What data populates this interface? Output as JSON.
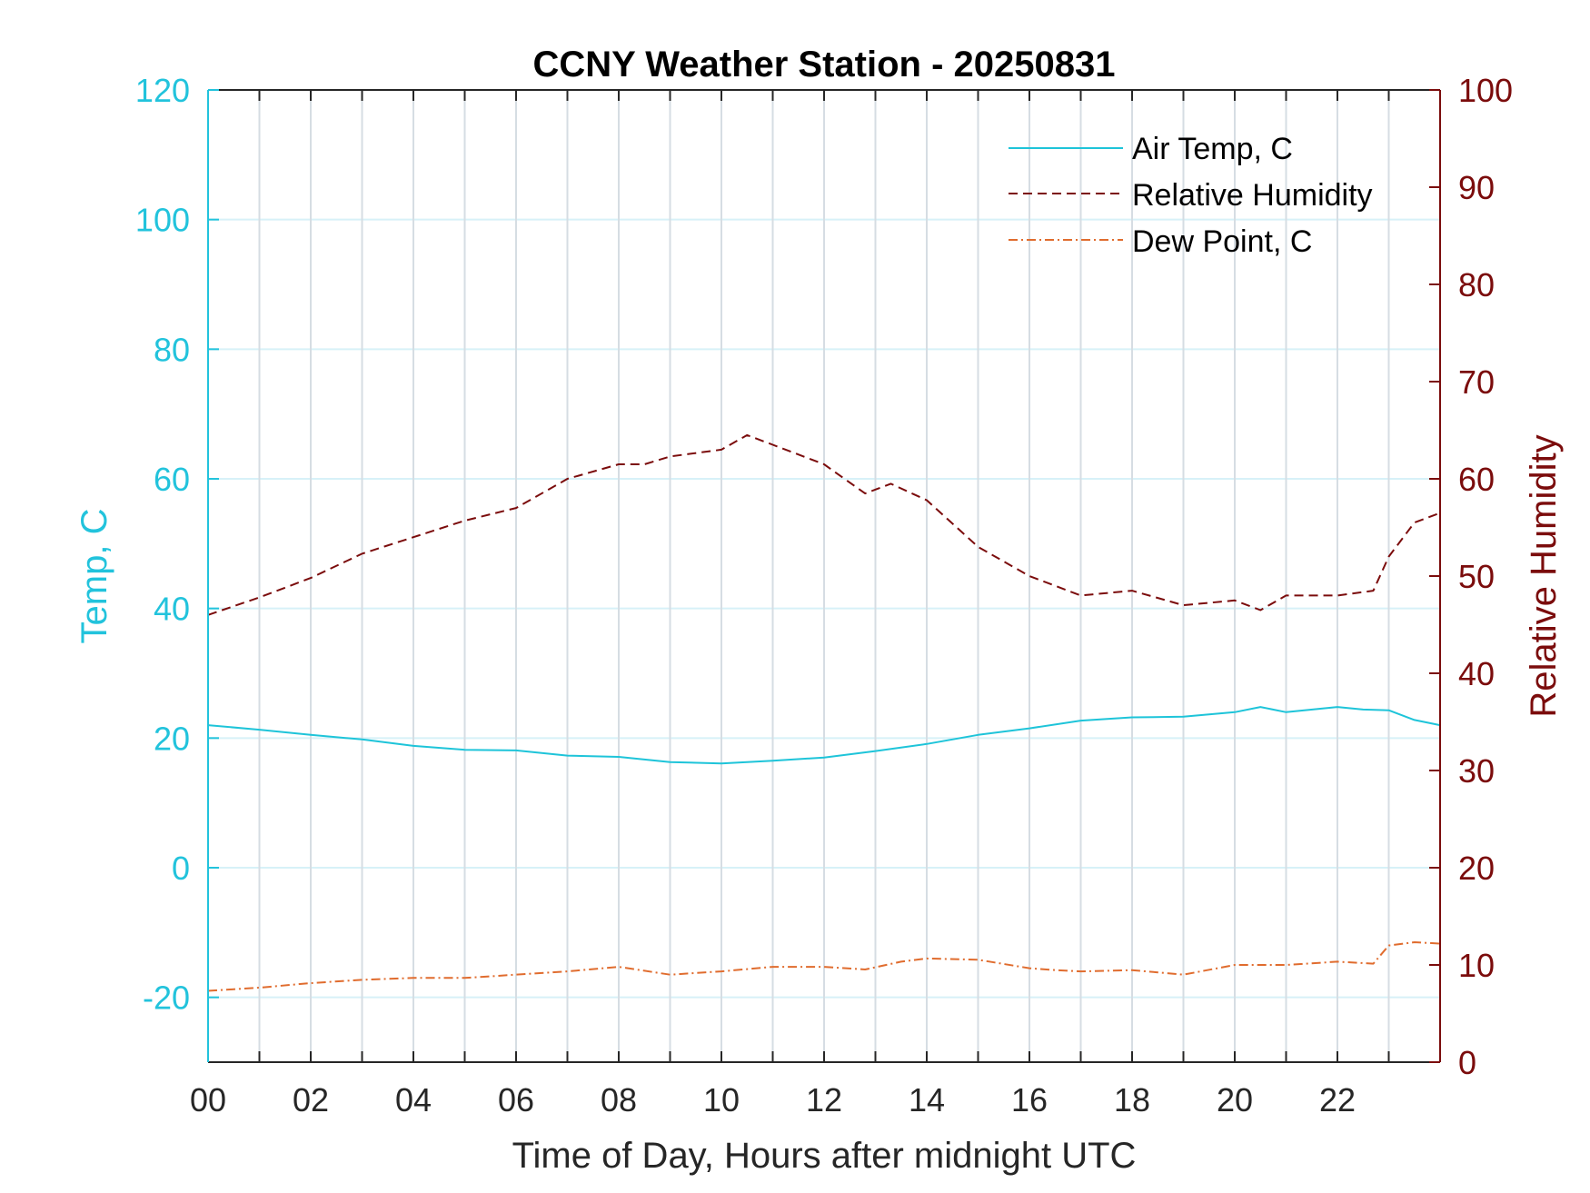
{
  "chart_data": {
    "type": "line",
    "title": "CCNY Weather Station - 20250831",
    "xlabel": "Time of Day, Hours after midnight UTC",
    "ylabel_left": "Temp, C",
    "ylabel_right": "Relative Humidity",
    "xlim": [
      0,
      24
    ],
    "ylim_left": [
      -30,
      120
    ],
    "ylim_right": [
      0,
      100
    ],
    "x_tick_labels": [
      "00",
      "02",
      "04",
      "06",
      "08",
      "10",
      "12",
      "14",
      "16",
      "18",
      "20",
      "22"
    ],
    "x_tick_values": [
      0,
      2,
      4,
      6,
      8,
      10,
      12,
      14,
      16,
      18,
      20,
      22
    ],
    "y_left_ticks": [
      -20,
      0,
      20,
      40,
      60,
      80,
      100,
      120
    ],
    "y_right_ticks": [
      0,
      10,
      20,
      30,
      40,
      50,
      60,
      70,
      80,
      90,
      100
    ],
    "grid": "on",
    "legend_position": "top-right",
    "colors": {
      "left_axis": "#22c3dc",
      "right_axis": "#7b0c0c",
      "temp": "#1ec4d9",
      "rh": "#7b0c0c",
      "dew": "#e06c2e",
      "vgrid": "#d6dde3",
      "hgrid": "#d7f1f8"
    },
    "series": [
      {
        "name": "Air Temp, C",
        "axis": "left",
        "style": "solid",
        "x": [
          0,
          1,
          2,
          3,
          4,
          5,
          6,
          7,
          8,
          9,
          10,
          11,
          12,
          13,
          14,
          15,
          16,
          17,
          18,
          19,
          20,
          20.5,
          21,
          22,
          22.5,
          23,
          23.5,
          24
        ],
        "values": [
          22.0,
          21.3,
          20.5,
          19.8,
          18.8,
          18.2,
          18.1,
          17.3,
          17.1,
          16.3,
          16.1,
          16.5,
          17.0,
          18.0,
          19.1,
          20.5,
          21.5,
          22.7,
          23.2,
          23.3,
          24.0,
          24.8,
          24.0,
          24.8,
          24.4,
          24.3,
          22.8,
          22.0
        ]
      },
      {
        "name": "Relative Humidity",
        "axis": "right",
        "style": "dashed",
        "x": [
          0,
          1,
          2,
          3,
          4,
          5,
          6,
          7,
          8,
          8.5,
          9,
          10,
          10.5,
          11,
          12,
          12.8,
          13.3,
          14,
          15,
          16,
          17,
          18,
          19,
          20,
          20.5,
          21,
          22,
          22.7,
          23,
          23.5,
          24
        ],
        "values": [
          46.0,
          47.8,
          49.8,
          52.3,
          54.0,
          55.7,
          57.0,
          60.0,
          61.5,
          61.5,
          62.3,
          63.0,
          64.5,
          63.5,
          61.5,
          58.5,
          59.5,
          57.8,
          53.0,
          50.0,
          48.0,
          48.5,
          47.0,
          47.5,
          46.5,
          48.0,
          48.0,
          48.5,
          52.0,
          55.5,
          56.5
        ]
      },
      {
        "name": "Dew Point, C",
        "axis": "left",
        "style": "dashdot",
        "x": [
          0,
          1,
          2,
          3,
          4,
          5,
          6,
          7,
          8,
          9,
          10,
          11,
          12,
          12.8,
          13.5,
          14,
          15,
          16,
          16.5,
          17,
          18,
          19,
          20,
          21,
          22,
          22.7,
          23,
          23.5,
          24
        ],
        "values": [
          -19.0,
          -18.5,
          -17.8,
          -17.3,
          -17.0,
          -17.0,
          -16.5,
          -16.0,
          -15.3,
          -16.5,
          -16.0,
          -15.3,
          -15.3,
          -15.7,
          -14.5,
          -14.0,
          -14.2,
          -15.5,
          -15.8,
          -16.0,
          -15.8,
          -16.5,
          -15.0,
          -15.0,
          -14.5,
          -14.8,
          -12.0,
          -11.5,
          -11.7
        ]
      }
    ]
  }
}
